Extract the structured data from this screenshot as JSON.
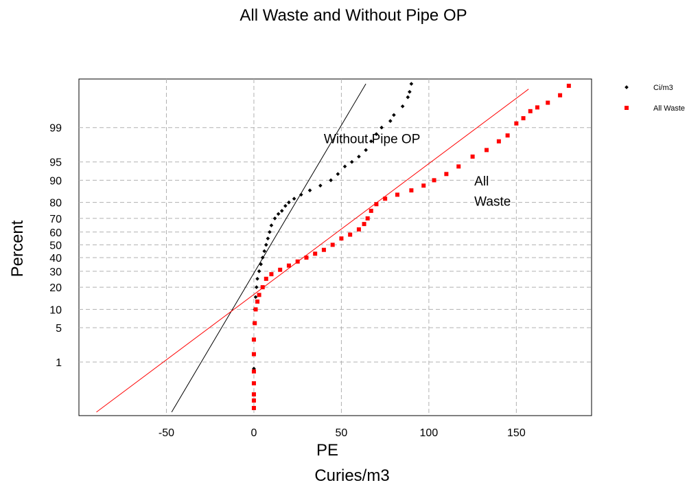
{
  "chart_data": {
    "type": "scatter",
    "title": "All Waste and Without Pipe OP",
    "xlabel_line1": "PE",
    "xlabel_line2": "Curies/m3",
    "ylabel": "Percent",
    "y_scale": "normal-probability",
    "x_ticks": [
      -50,
      0,
      50,
      100,
      150
    ],
    "y_ticks": [
      1,
      5,
      10,
      20,
      30,
      40,
      50,
      60,
      70,
      80,
      90,
      95,
      99
    ],
    "xlim": [
      -100,
      193
    ],
    "ylim": [
      0.035,
      99.95
    ],
    "grid": true,
    "legend_position": "right",
    "annotations": [
      {
        "text": "Without Pipe OP",
        "x": 40,
        "y": 97.8
      },
      {
        "text": "All",
        "x": 126,
        "y": 88
      },
      {
        "text": "Waste",
        "x": 126,
        "y": 78
      }
    ],
    "series": [
      {
        "name": "Ci/m3",
        "color": "#000000",
        "marker": "diamond",
        "fit_line": {
          "x": [
            -47,
            64
          ],
          "y": [
            0.045,
            99.93
          ]
        },
        "points": [
          [
            0,
            0.15
          ],
          [
            0,
            0.3
          ],
          [
            0,
            0.7
          ],
          [
            0,
            1.5
          ],
          [
            0,
            3
          ],
          [
            0.2,
            6
          ],
          [
            0.5,
            10
          ],
          [
            1,
            15
          ],
          [
            1.5,
            20
          ],
          [
            2,
            25
          ],
          [
            3,
            30
          ],
          [
            4,
            35
          ],
          [
            5,
            40
          ],
          [
            6,
            45
          ],
          [
            7,
            50
          ],
          [
            8,
            55
          ],
          [
            9,
            60
          ],
          [
            10,
            65
          ],
          [
            12,
            70
          ],
          [
            14,
            73
          ],
          [
            16,
            75
          ],
          [
            18,
            78
          ],
          [
            20,
            80
          ],
          [
            23,
            82
          ],
          [
            27,
            84
          ],
          [
            32,
            86
          ],
          [
            38,
            88
          ],
          [
            44,
            90
          ],
          [
            48,
            92
          ],
          [
            52,
            94
          ],
          [
            56,
            95
          ],
          [
            60,
            96
          ],
          [
            64,
            97
          ],
          [
            67,
            98
          ],
          [
            70,
            98.6
          ],
          [
            73,
            99
          ],
          [
            78,
            99.3
          ],
          [
            80,
            99.5
          ],
          [
            85,
            99.7
          ],
          [
            88,
            99.83
          ],
          [
            89,
            99.88
          ],
          [
            90,
            99.93
          ]
        ]
      },
      {
        "name": "All Waste",
        "color": "#ff0000",
        "marker": "square",
        "fit_line": {
          "x": [
            -90,
            157
          ],
          "y": [
            0.045,
            99.9
          ]
        },
        "points": [
          [
            0,
            0.06
          ],
          [
            0,
            0.1
          ],
          [
            0,
            0.15
          ],
          [
            0,
            0.3
          ],
          [
            0,
            0.6
          ],
          [
            0,
            1.5
          ],
          [
            0,
            3
          ],
          [
            0.5,
            6
          ],
          [
            1,
            10
          ],
          [
            2,
            13
          ],
          [
            3,
            16
          ],
          [
            5,
            20
          ],
          [
            7,
            25
          ],
          [
            10,
            28
          ],
          [
            15,
            31
          ],
          [
            20,
            34
          ],
          [
            25,
            37
          ],
          [
            30,
            40
          ],
          [
            35,
            43
          ],
          [
            40,
            46
          ],
          [
            45,
            50
          ],
          [
            50,
            55
          ],
          [
            55,
            58
          ],
          [
            60,
            62
          ],
          [
            63,
            66
          ],
          [
            65,
            70
          ],
          [
            67,
            75
          ],
          [
            70,
            79
          ],
          [
            75,
            82
          ],
          [
            82,
            84
          ],
          [
            90,
            86
          ],
          [
            97,
            88
          ],
          [
            103,
            90
          ],
          [
            110,
            92
          ],
          [
            117,
            94
          ],
          [
            125,
            96
          ],
          [
            133,
            97
          ],
          [
            140,
            98
          ],
          [
            145,
            98.5
          ],
          [
            150,
            99.2
          ],
          [
            154,
            99.4
          ],
          [
            158,
            99.6
          ],
          [
            162,
            99.68
          ],
          [
            168,
            99.76
          ],
          [
            175,
            99.85
          ],
          [
            180,
            99.92
          ]
        ]
      }
    ]
  }
}
